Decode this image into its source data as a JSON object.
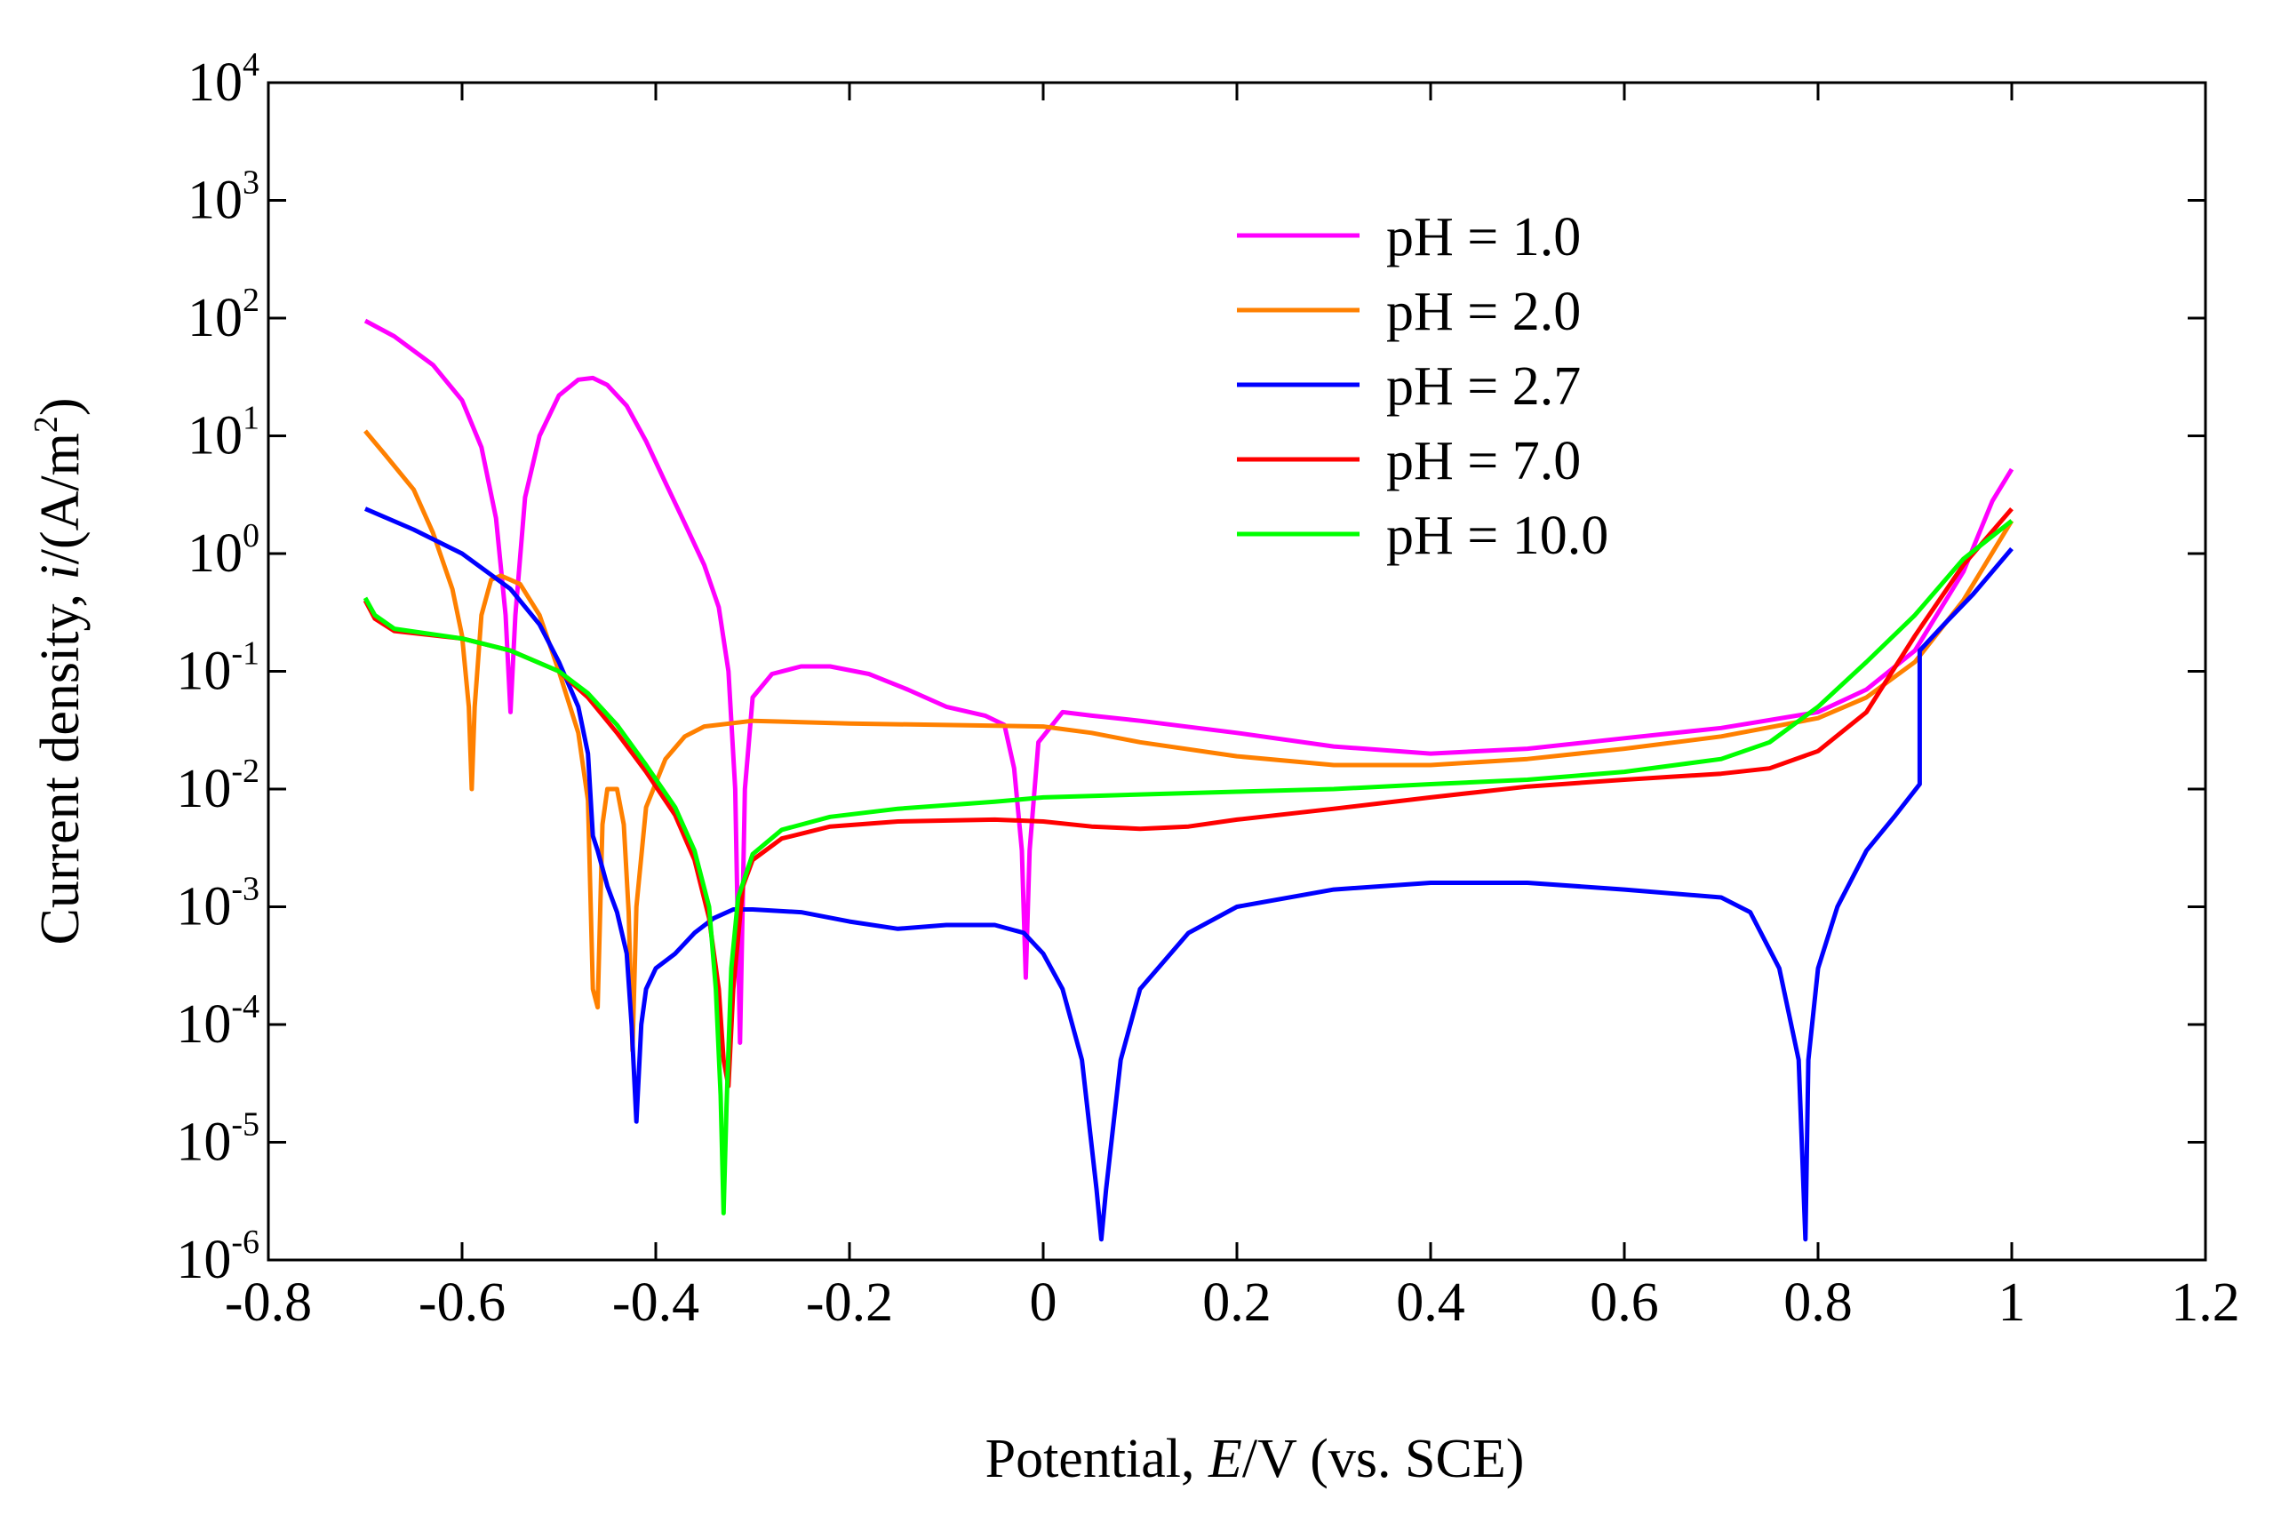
{
  "chart_data": {
    "type": "line",
    "title": "",
    "xlabel": "Potential, E/V (vs. SCE)",
    "xlabel_parts": [
      "Potential, ",
      "E",
      "/V (vs. SCE)"
    ],
    "ylabel": "Current density, i/(A/m2)",
    "ylabel_parts": [
      "Current density, ",
      "i",
      "/(A/m",
      "2",
      ")"
    ],
    "xlim": [
      -0.8,
      1.2
    ],
    "ylim_log10": [
      -6,
      4
    ],
    "yscale": "log",
    "x_ticks": [
      -0.8,
      -0.6,
      -0.4,
      -0.2,
      0,
      0.2,
      0.4,
      0.6,
      0.8,
      1,
      1.2
    ],
    "x_tick_labels": [
      "-0.8",
      "-0.6",
      "-0.4",
      "-0.2",
      "0",
      "0.2",
      "0.4",
      "0.6",
      "0.8",
      "1",
      "1.2"
    ],
    "y_tick_exponents": [
      "-6",
      "-5",
      "-4",
      "-3",
      "-2",
      "-1",
      "0",
      "1",
      "2",
      "3",
      "4"
    ],
    "y_tick_base": "10",
    "legend_position": "top-right",
    "series": [
      {
        "name": "pH = 1.0",
        "color": "#ff00ff",
        "points": [
          [
            -0.7,
            95
          ],
          [
            -0.67,
            70
          ],
          [
            -0.63,
            40
          ],
          [
            -0.6,
            20
          ],
          [
            -0.58,
            8
          ],
          [
            -0.565,
            2
          ],
          [
            -0.555,
            0.3
          ],
          [
            -0.55,
            0.045
          ],
          [
            -0.545,
            0.3
          ],
          [
            -0.535,
            3
          ],
          [
            -0.52,
            10
          ],
          [
            -0.5,
            22
          ],
          [
            -0.48,
            30
          ],
          [
            -0.465,
            31
          ],
          [
            -0.45,
            27
          ],
          [
            -0.43,
            18
          ],
          [
            -0.41,
            9
          ],
          [
            -0.39,
            4
          ],
          [
            -0.37,
            1.8
          ],
          [
            -0.35,
            0.8
          ],
          [
            -0.335,
            0.35
          ],
          [
            -0.325,
            0.1
          ],
          [
            -0.318,
            0.01
          ],
          [
            -0.313,
            7e-05
          ],
          [
            -0.308,
            0.01
          ],
          [
            -0.3,
            0.06
          ],
          [
            -0.28,
            0.095
          ],
          [
            -0.25,
            0.11
          ],
          [
            -0.22,
            0.11
          ],
          [
            -0.18,
            0.095
          ],
          [
            -0.14,
            0.07
          ],
          [
            -0.1,
            0.05
          ],
          [
            -0.06,
            0.042
          ],
          [
            -0.04,
            0.035
          ],
          [
            -0.03,
            0.015
          ],
          [
            -0.022,
            0.003
          ],
          [
            -0.018,
            0.00025
          ],
          [
            -0.014,
            0.003
          ],
          [
            -0.005,
            0.025
          ],
          [
            0.02,
            0.045
          ],
          [
            0.05,
            0.042
          ],
          [
            0.1,
            0.038
          ],
          [
            0.2,
            0.03
          ],
          [
            0.3,
            0.023
          ],
          [
            0.4,
            0.02
          ],
          [
            0.5,
            0.022
          ],
          [
            0.6,
            0.027
          ],
          [
            0.7,
            0.033
          ],
          [
            0.8,
            0.045
          ],
          [
            0.85,
            0.07
          ],
          [
            0.9,
            0.15
          ],
          [
            0.95,
            0.7
          ],
          [
            0.98,
            2.8
          ],
          [
            1.0,
            5.2
          ]
        ]
      },
      {
        "name": "pH = 2.0",
        "color": "#ff8000",
        "points": [
          [
            -0.7,
            11
          ],
          [
            -0.68,
            7
          ],
          [
            -0.65,
            3.5
          ],
          [
            -0.63,
            1.5
          ],
          [
            -0.61,
            0.5
          ],
          [
            -0.6,
            0.2
          ],
          [
            -0.593,
            0.05
          ],
          [
            -0.59,
            0.01
          ],
          [
            -0.587,
            0.05
          ],
          [
            -0.58,
            0.3
          ],
          [
            -0.57,
            0.6
          ],
          [
            -0.56,
            0.65
          ],
          [
            -0.54,
            0.55
          ],
          [
            -0.52,
            0.3
          ],
          [
            -0.5,
            0.1
          ],
          [
            -0.48,
            0.03
          ],
          [
            -0.47,
            0.008
          ],
          [
            -0.465,
            0.0002
          ],
          [
            -0.46,
            0.00014
          ],
          [
            -0.455,
            0.005
          ],
          [
            -0.45,
            0.01
          ],
          [
            -0.44,
            0.01
          ],
          [
            -0.433,
            0.005
          ],
          [
            -0.428,
            0.0009
          ],
          [
            -0.424,
            6e-05
          ],
          [
            -0.42,
            0.001
          ],
          [
            -0.41,
            0.007
          ],
          [
            -0.39,
            0.018
          ],
          [
            -0.37,
            0.028
          ],
          [
            -0.35,
            0.034
          ],
          [
            -0.3,
            0.038
          ],
          [
            -0.25,
            0.037
          ],
          [
            -0.2,
            0.036
          ],
          [
            -0.1,
            0.035
          ],
          [
            0.0,
            0.034
          ],
          [
            0.05,
            0.03
          ],
          [
            0.1,
            0.025
          ],
          [
            0.2,
            0.019
          ],
          [
            0.3,
            0.016
          ],
          [
            0.4,
            0.016
          ],
          [
            0.5,
            0.018
          ],
          [
            0.6,
            0.022
          ],
          [
            0.7,
            0.028
          ],
          [
            0.8,
            0.04
          ],
          [
            0.85,
            0.06
          ],
          [
            0.9,
            0.12
          ],
          [
            0.95,
            0.4
          ],
          [
            1.0,
            1.9
          ]
        ]
      },
      {
        "name": "pH = 2.7",
        "color": "#0000ff",
        "points": [
          [
            -0.7,
            2.4
          ],
          [
            -0.65,
            1.6
          ],
          [
            -0.6,
            1.0
          ],
          [
            -0.55,
            0.5
          ],
          [
            -0.52,
            0.25
          ],
          [
            -0.5,
            0.12
          ],
          [
            -0.48,
            0.05
          ],
          [
            -0.47,
            0.02
          ],
          [
            -0.465,
            0.004
          ],
          [
            -0.46,
            0.003
          ],
          [
            -0.45,
            0.0015
          ],
          [
            -0.44,
            0.0009
          ],
          [
            -0.43,
            0.0004
          ],
          [
            -0.425,
            0.0001
          ],
          [
            -0.42,
            1.5e-05
          ],
          [
            -0.415,
            0.0001
          ],
          [
            -0.41,
            0.0002
          ],
          [
            -0.4,
            0.0003
          ],
          [
            -0.38,
            0.0004
          ],
          [
            -0.36,
            0.0006
          ],
          [
            -0.34,
            0.0008
          ],
          [
            -0.32,
            0.00095
          ],
          [
            -0.3,
            0.00095
          ],
          [
            -0.25,
            0.0009
          ],
          [
            -0.2,
            0.00075
          ],
          [
            -0.15,
            0.00065
          ],
          [
            -0.1,
            0.0007
          ],
          [
            -0.05,
            0.0007
          ],
          [
            -0.02,
            0.0006
          ],
          [
            0.0,
            0.0004
          ],
          [
            0.02,
            0.0002
          ],
          [
            0.04,
            5e-05
          ],
          [
            0.055,
            4e-06
          ],
          [
            0.06,
            1.5e-06
          ],
          [
            0.065,
            4e-06
          ],
          [
            0.08,
            5e-05
          ],
          [
            0.1,
            0.0002
          ],
          [
            0.15,
            0.0006
          ],
          [
            0.2,
            0.001
          ],
          [
            0.3,
            0.0014
          ],
          [
            0.4,
            0.0016
          ],
          [
            0.5,
            0.0016
          ],
          [
            0.6,
            0.0014
          ],
          [
            0.7,
            0.0012
          ],
          [
            0.73,
            0.0009
          ],
          [
            0.76,
            0.0003
          ],
          [
            0.78,
            5e-05
          ],
          [
            0.787,
            1.5e-06
          ],
          [
            0.79,
            5e-05
          ],
          [
            0.8,
            0.0003
          ],
          [
            0.82,
            0.001
          ],
          [
            0.85,
            0.003
          ],
          [
            0.88,
            0.006
          ],
          [
            0.905,
            0.011
          ],
          [
            0.905,
            0.15
          ],
          [
            0.93,
            0.25
          ],
          [
            0.96,
            0.45
          ],
          [
            1.0,
            1.1
          ]
        ]
      },
      {
        "name": "pH = 7.0",
        "color": "#ff0000",
        "points": [
          [
            -0.7,
            0.4
          ],
          [
            -0.69,
            0.28
          ],
          [
            -0.67,
            0.22
          ],
          [
            -0.6,
            0.19
          ],
          [
            -0.55,
            0.15
          ],
          [
            -0.5,
            0.1
          ],
          [
            -0.47,
            0.06
          ],
          [
            -0.44,
            0.03
          ],
          [
            -0.41,
            0.014
          ],
          [
            -0.38,
            0.006
          ],
          [
            -0.36,
            0.0025
          ],
          [
            -0.345,
            0.0008
          ],
          [
            -0.335,
            0.0002
          ],
          [
            -0.33,
            5e-05
          ],
          [
            -0.325,
            3e-05
          ],
          [
            -0.32,
            0.0002
          ],
          [
            -0.31,
            0.0015
          ],
          [
            -0.3,
            0.0025
          ],
          [
            -0.27,
            0.0038
          ],
          [
            -0.22,
            0.0048
          ],
          [
            -0.15,
            0.0053
          ],
          [
            -0.05,
            0.0055
          ],
          [
            0.0,
            0.0053
          ],
          [
            0.05,
            0.0048
          ],
          [
            0.1,
            0.0046
          ],
          [
            0.15,
            0.0048
          ],
          [
            0.2,
            0.0055
          ],
          [
            0.3,
            0.0068
          ],
          [
            0.4,
            0.0085
          ],
          [
            0.5,
            0.0105
          ],
          [
            0.6,
            0.012
          ],
          [
            0.7,
            0.0135
          ],
          [
            0.75,
            0.015
          ],
          [
            0.8,
            0.021
          ],
          [
            0.85,
            0.045
          ],
          [
            0.9,
            0.2
          ],
          [
            0.95,
            0.8
          ],
          [
            1.0,
            2.4
          ]
        ]
      },
      {
        "name": "pH = 10.0",
        "color": "#00ff00",
        "points": [
          [
            -0.7,
            0.42
          ],
          [
            -0.69,
            0.3
          ],
          [
            -0.67,
            0.23
          ],
          [
            -0.6,
            0.19
          ],
          [
            -0.55,
            0.15
          ],
          [
            -0.5,
            0.1
          ],
          [
            -0.47,
            0.065
          ],
          [
            -0.44,
            0.035
          ],
          [
            -0.41,
            0.016
          ],
          [
            -0.38,
            0.007
          ],
          [
            -0.36,
            0.003
          ],
          [
            -0.345,
            0.001
          ],
          [
            -0.338,
            0.0002
          ],
          [
            -0.333,
            2.5e-05
          ],
          [
            -0.33,
            2.5e-06
          ],
          [
            -0.327,
            2e-05
          ],
          [
            -0.322,
            0.0003
          ],
          [
            -0.315,
            0.0012
          ],
          [
            -0.3,
            0.0028
          ],
          [
            -0.27,
            0.0045
          ],
          [
            -0.22,
            0.0058
          ],
          [
            -0.15,
            0.0068
          ],
          [
            -0.05,
            0.0078
          ],
          [
            0.0,
            0.0085
          ],
          [
            0.1,
            0.009
          ],
          [
            0.2,
            0.0095
          ],
          [
            0.3,
            0.01
          ],
          [
            0.4,
            0.011
          ],
          [
            0.5,
            0.012
          ],
          [
            0.6,
            0.014
          ],
          [
            0.7,
            0.018
          ],
          [
            0.75,
            0.025
          ],
          [
            0.8,
            0.05
          ],
          [
            0.85,
            0.12
          ],
          [
            0.9,
            0.3
          ],
          [
            0.95,
            0.9
          ],
          [
            1.0,
            1.9
          ]
        ]
      }
    ]
  }
}
